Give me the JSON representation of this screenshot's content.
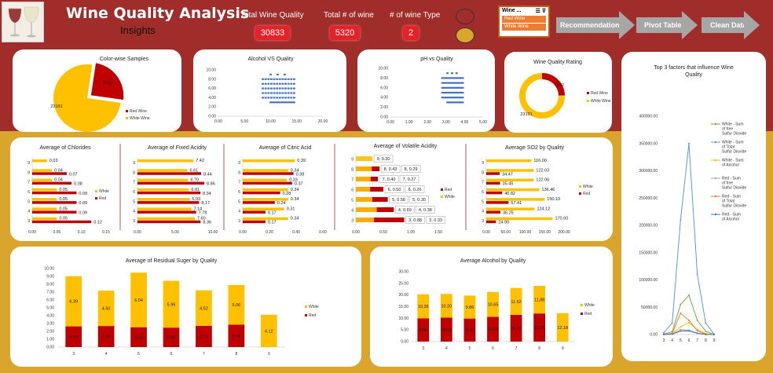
{
  "header": {
    "title": "Wine Quality Analysis",
    "subtitle": "Insights",
    "kpis": [
      {
        "label": "Total Wine Quality",
        "value": "30833"
      },
      {
        "label": "Total # of wine",
        "value": "5320"
      },
      {
        "label": "# of wine Type",
        "value": "2"
      }
    ],
    "slicer": {
      "title": "Wine ...",
      "items": [
        "Red Wine",
        "White Wine"
      ]
    },
    "nav": [
      "Recommendation",
      "Pivot Table",
      "Clean Data"
    ]
  },
  "colors": {
    "red": "#c00000",
    "white_wine": "#ffc000",
    "scatter": "#4472c4",
    "banner": "#a12d2b"
  },
  "chart_data": [
    {
      "id": "color-wise",
      "type": "pie",
      "title": "Color-wise Samples",
      "labels": [
        "Red Wine",
        "White Wine"
      ],
      "values": [
        7642,
        23191
      ],
      "data_labels": [
        "7642",
        "23191"
      ]
    },
    {
      "id": "alcohol-vs-quality",
      "type": "scatter",
      "title": "Alcohol VS Quality",
      "x_ticks": [
        "0.00",
        "5.00",
        "10.00",
        "15.00",
        "20.00"
      ],
      "y_ticks": [
        "0.00",
        "2.00",
        "4.00",
        "6.00",
        "8.00",
        "10.00"
      ],
      "xlim": [
        0,
        20
      ],
      "ylim": [
        0,
        10
      ],
      "quality_levels": [
        3,
        4,
        5,
        6,
        7,
        8,
        9
      ],
      "x_range": [
        8.5,
        14.5
      ]
    },
    {
      "id": "ph-vs-quality",
      "type": "scatter",
      "title": "pH vs Quality",
      "x_ticks": [
        "0.00",
        "1.00",
        "2.00",
        "3.00",
        "4.00",
        "5.00"
      ],
      "y_ticks": [
        "0.00",
        "2.00",
        "4.00",
        "6.00",
        "8.00",
        "10.00"
      ],
      "xlim": [
        0,
        5
      ],
      "ylim": [
        0,
        10
      ],
      "quality_levels": [
        3,
        4,
        5,
        6,
        7,
        8,
        9
      ],
      "x_range": [
        2.8,
        3.9
      ]
    },
    {
      "id": "quality-rating",
      "type": "pie",
      "title": "Wine Quality Rating",
      "labels": [
        "Red Wine",
        "White Wine"
      ],
      "values": [
        7642,
        23191
      ],
      "data_labels": [
        "7642",
        "23191"
      ]
    },
    {
      "id": "chlorides",
      "type": "bar",
      "title": "Average of Chlorides",
      "categories": [
        "3",
        "4",
        "5",
        "6",
        "7",
        "8",
        "9"
      ],
      "series": [
        {
          "name": "Red",
          "values": [
            0.12,
            0.09,
            0.09,
            0.09,
            0.08,
            0.07,
            null
          ],
          "labels": [
            "0.12",
            "0.09",
            "0.09",
            "0.09",
            "0.08",
            "0.07",
            ""
          ]
        },
        {
          "name": "White",
          "values": [
            0.05,
            0.05,
            0.05,
            0.05,
            0.04,
            0.04,
            0.03
          ],
          "labels": [
            "0.05",
            "0.05",
            "0.05",
            "0.05",
            "0.04",
            "0.04",
            "0.03"
          ]
        }
      ],
      "x_ticks": [
        "0.00",
        "0.05",
        "0.10",
        "0.15"
      ],
      "xlim": [
        0,
        0.15
      ]
    },
    {
      "id": "fixed-acidity",
      "type": "bar",
      "title": "Average of Fixed Acidity",
      "categories": [
        "3",
        "4",
        "5",
        "6",
        "7",
        "8",
        "9"
      ],
      "series": [
        {
          "name": "Red",
          "values": [
            8.36,
            7.78,
            8.17,
            8.34,
            8.86,
            8.44,
            null
          ],
          "labels": [
            "8.36",
            "7.78",
            "8.17",
            "8.34",
            "8.86",
            "8.44",
            ""
          ]
        },
        {
          "name": "White",
          "values": [
            7.6,
            7.14,
            6.93,
            6.81,
            6.7,
            6.61,
            7.42
          ],
          "labels": [
            "7.60",
            "7.14",
            "6.93",
            "6.81",
            "6.70",
            "6.61",
            "7.42"
          ]
        }
      ],
      "x_ticks": [
        "0.00",
        "5.00",
        "10.00"
      ],
      "xlim": [
        0,
        10
      ]
    },
    {
      "id": "citric-acid",
      "type": "bar",
      "title": "Average of Citric Acid",
      "categories": [
        "3",
        "4",
        "5",
        "6",
        "7",
        "8",
        "9"
      ],
      "series": [
        {
          "name": "Red",
          "values": [
            0.17,
            0.17,
            0.24,
            0.28,
            0.37,
            0.38,
            null
          ],
          "labels": [
            "0.17",
            "0.17",
            "0.24",
            "0.28",
            "0.37",
            "0.38",
            ""
          ]
        },
        {
          "name": "White",
          "values": [
            0.34,
            0.31,
            0.34,
            0.34,
            0.33,
            0.34,
            0.39
          ],
          "labels": [
            "0.34",
            "0.31",
            "0.34",
            "0.34",
            "0.33",
            "0.34",
            "0.39"
          ]
        }
      ],
      "x_ticks": [
        "0.00",
        "0.20",
        "0.40",
        "0.60"
      ],
      "xlim": [
        0,
        0.6
      ]
    },
    {
      "id": "volatile-acidity",
      "type": "bar",
      "title": "Average of Volatile Acidity",
      "categories": [
        "3",
        "4",
        "5",
        "6",
        "7",
        "8",
        "9"
      ],
      "series": [
        {
          "name": "Red",
          "values": [
            0.88,
            0.69,
            0.58,
            0.5,
            0.4,
            0.43,
            null
          ]
        },
        {
          "name": "White",
          "values": [
            0.33,
            0.38,
            0.3,
            0.26,
            0.27,
            0.29,
            0.3
          ]
        }
      ],
      "data_labels": [
        "3, 0.88",
        "3, 0.33",
        "4, 0.69",
        "4, 0.38",
        "5, 0.58",
        "5, 0.30",
        "6, 0.50",
        "6, 0.26",
        "7, 0.40",
        "7, 0.27",
        "8, 0.43",
        "8, 0.29",
        "9, 0.30"
      ],
      "x_ticks": [
        "0.00",
        "0.50",
        "1.00",
        "1.50"
      ],
      "xlim": [
        0,
        1.5
      ]
    },
    {
      "id": "so2",
      "type": "bar",
      "title": "Average SO2 by Quality",
      "categories": [
        "3",
        "4",
        "5",
        "6",
        "7",
        "8",
        "9"
      ],
      "series": [
        {
          "name": "Red",
          "values": [
            24.9,
            36.25,
            57.41,
            40.82,
            35.45,
            34.47,
            null
          ],
          "labels": [
            "24.90",
            "36.25",
            "57.41",
            "40.82",
            "35.45",
            "34.47",
            ""
          ]
        },
        {
          "name": "White",
          "values": [
            170.6,
            124.12,
            150.1,
            136.46,
            122.06,
            122.03,
            116.0
          ],
          "labels": [
            "170.60",
            "124.12",
            "150.10",
            "136.46",
            "122.06",
            "122.03",
            "116.00"
          ]
        }
      ],
      "x_ticks": [
        "0.00",
        "50.00",
        "100.00",
        "150.00",
        "200.00"
      ],
      "xlim": [
        0,
        200
      ]
    },
    {
      "id": "residual-sugar",
      "type": "bar",
      "title": "Average of Residual Suger by Quality",
      "categories": [
        "3",
        "4",
        "5",
        "6",
        "7",
        "8",
        "9"
      ],
      "series": [
        {
          "name": "Red",
          "values": [
            2.64,
            2.69,
            2.53,
            2.48,
            2.71,
            2.85,
            null
          ],
          "labels": [
            "2.64",
            "2.69",
            "2.53",
            "2.48",
            "2.71",
            "2.85",
            ""
          ]
        },
        {
          "name": "White",
          "values": [
            6.39,
            4.5,
            6.94,
            5.96,
            4.52,
            5.06,
            4.12
          ],
          "labels": [
            "6.39",
            "4.50",
            "6.94",
            "5.96",
            "4.52",
            "5.06",
            "4.12"
          ]
        }
      ],
      "y_ticks": [
        "0.00",
        "1.00",
        "2.00",
        "3.00",
        "4.00",
        "5.00",
        "6.00",
        "7.00",
        "8.00",
        "9.00",
        "10.00"
      ],
      "ylim": [
        0,
        10
      ]
    },
    {
      "id": "avg-alcohol",
      "type": "bar",
      "title": "Average Alcohol by Quality",
      "categories": [
        "3",
        "4",
        "5",
        "6",
        "7",
        "8",
        "9"
      ],
      "series": [
        {
          "name": "Red",
          "values": [
            9.96,
            10.27,
            9.9,
            10.65,
            11.49,
            12.06,
            null
          ],
          "labels": [
            "9.96",
            "10.27",
            "9.90",
            "10.65",
            "11.49",
            "12.06",
            ""
          ]
        },
        {
          "name": "White",
          "values": [
            10.35,
            10.2,
            9.86,
            10.65,
            11.52,
            11.88,
            12.18
          ],
          "labels": [
            "10.35",
            "10.20",
            "9.86",
            "10.65",
            "11.52",
            "11.88",
            "12.18"
          ]
        }
      ],
      "y_ticks": [
        "0.00",
        "5.00",
        "10.00",
        "15.00",
        "20.00",
        "25.00",
        "30.00"
      ],
      "ylim": [
        0,
        30
      ]
    },
    {
      "id": "top-factors",
      "type": "line",
      "title": "Top 3 factors that influence Wine Quality",
      "categories": [
        "3",
        "4",
        "5",
        "6",
        "7",
        "8",
        "9"
      ],
      "y_ticks": [
        "0.00",
        "50000.00",
        "100000.00",
        "150000.00",
        "200000.00",
        "250000.00",
        "300000.00",
        "350000.00",
        "400000.00"
      ],
      "ylim": [
        0,
        400000
      ],
      "series": [
        {
          "name": "White - Sum of free Sulfur Dioxide",
          "color": "#70ad47",
          "values": [
            800,
            5000,
            55000,
            72000,
            26000,
            6000,
            200
          ]
        },
        {
          "name": "White - Sum of Total Sulfur Dioxide",
          "color": "#5b9bd5",
          "values": [
            3500,
            21000,
            210000,
            350000,
            110000,
            21000,
            600
          ]
        },
        {
          "name": "White - Sum of Alcohol",
          "color": "#ffc000",
          "values": [
            200,
            1500,
            14000,
            22000,
            9000,
            1800,
            60
          ]
        },
        {
          "name": "Red - Sum of free Sulfur Dioxide",
          "color": "#a5a5a5",
          "values": [
            100,
            700,
            9000,
            8000,
            2500,
            300,
            0
          ]
        },
        {
          "name": "Red - Sum of Total Sulfur Dioxide",
          "color": "#ed7d31",
          "values": [
            250,
            2000,
            39000,
            26000,
            7000,
            600,
            0
          ]
        },
        {
          "name": "Red - Sum of Alcohol",
          "color": "#4472c4",
          "values": [
            100,
            550,
            6500,
            6700,
            2300,
            220,
            0
          ]
        }
      ]
    }
  ]
}
